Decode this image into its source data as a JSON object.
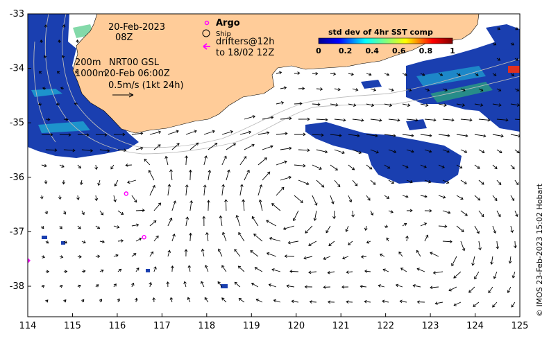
{
  "axes": {
    "x_ticks": [
      "114",
      "115",
      "116",
      "117",
      "118",
      "119",
      "120",
      "121",
      "122",
      "123",
      "124",
      "125"
    ],
    "y_ticks": [
      "-33",
      "-34",
      "-35",
      "-36",
      "-37",
      "-38"
    ],
    "lon_range": [
      114,
      125
    ],
    "lat_range": [
      -38.5,
      -32.9
    ]
  },
  "info": {
    "date": "20-Feb-2023",
    "time": "08Z",
    "depth_200": "200m",
    "depth_1000": "1000m",
    "nrt": "NRT00 GSL",
    "nrt_date": "20-Feb 06:00Z",
    "scale": "0.5m/s (1kt 24h)"
  },
  "legend": {
    "argo": "Argo",
    "ship": "Ship",
    "drifters": "drifters@12h",
    "drifters_to": "to 18/02 12Z"
  },
  "colorbar": {
    "title": "std dev of 4hr SST comp",
    "ticks": [
      "0",
      "0.2",
      "0.4",
      "0.6",
      "0.8",
      "1"
    ]
  },
  "credit": "© IMOS 23-Feb-2023 15:02 Hobart",
  "colors": {
    "land": "#ffcc99",
    "argo": "#ff00ff",
    "sst_low": "#1030a0",
    "sst_mid": "#20b0e0"
  },
  "argo_floats": [
    {
      "lon": 116.2,
      "lat": -36.3
    },
    {
      "lon": 116.6,
      "lat": -37.1
    }
  ]
}
